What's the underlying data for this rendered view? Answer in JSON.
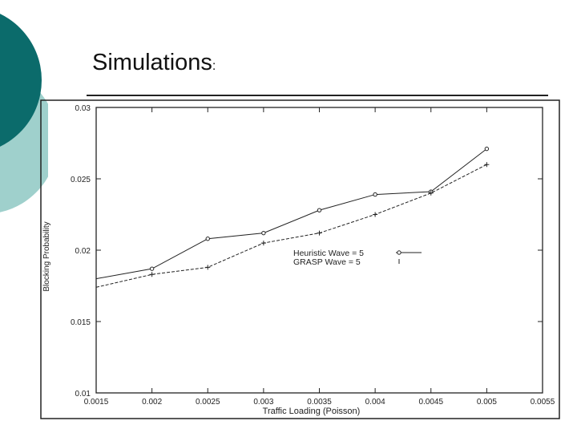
{
  "slide": {
    "title": "Simulations",
    "title_colon": ":"
  },
  "theme": {
    "accent_dark": "#0b6b6b",
    "accent_light": "#9fd0cc",
    "line_color": "#222222"
  },
  "chart_data": {
    "type": "line",
    "title": "",
    "xlabel": "Traffic Loading (Poisson)",
    "ylabel": "Blocking Probability",
    "xlim": [
      0.0015,
      0.0055
    ],
    "ylim": [
      0.01,
      0.03
    ],
    "x_ticks": [
      "0.0015",
      "0.002",
      "0.0025",
      "0.003",
      "0.0035",
      "0.004",
      "0.0045",
      "0.005",
      "0.0055"
    ],
    "y_ticks": [
      "0.01",
      "0.015",
      "0.02",
      "0.025",
      "0.03"
    ],
    "legend_position": "center-right",
    "grid": false,
    "series": [
      {
        "name": "Heuristic Wave = 5",
        "marker": "diamond",
        "style": "solid",
        "x": [
          0.0015,
          0.002,
          0.0025,
          0.003,
          0.0035,
          0.004,
          0.0045,
          0.005
        ],
        "y": [
          0.018,
          0.0187,
          0.0208,
          0.0212,
          0.0228,
          0.0239,
          0.0241,
          0.0271
        ]
      },
      {
        "name": "GRASP Wave = 5",
        "marker": "plus",
        "style": "dashed",
        "x": [
          0.0015,
          0.002,
          0.0025,
          0.003,
          0.0035,
          0.004,
          0.0045,
          0.005
        ],
        "y": [
          0.0174,
          0.0183,
          0.0188,
          0.0205,
          0.0212,
          0.0225,
          0.024,
          0.026
        ]
      }
    ]
  }
}
